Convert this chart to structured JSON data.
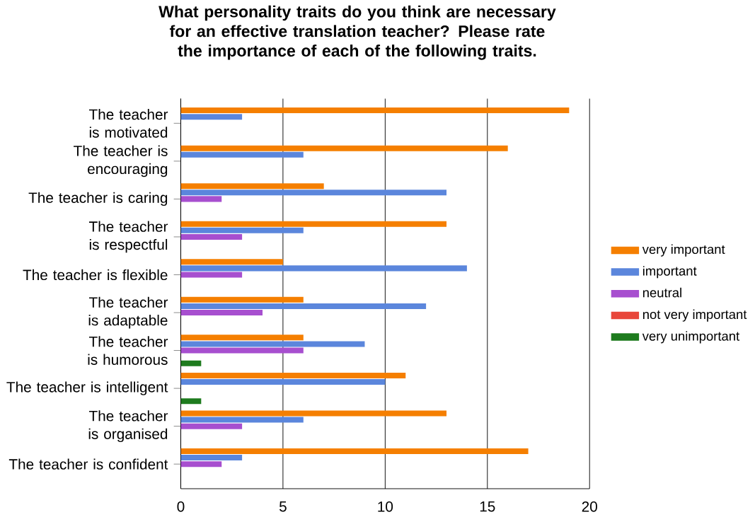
{
  "chart_data": {
    "type": "bar",
    "orientation": "horizontal",
    "title": "What personality traits do you think are necessary for an effective translation teacher? Please rate the importance of each of the following traits.",
    "categories": [
      "The teacher is motivated",
      "The teacher is encouraging",
      "The teacher is caring",
      "The teacher is respectful",
      "The teacher is flexible",
      "The teacher is adaptable",
      "The teacher is humorous",
      "The teacher is intelligent",
      "The teacher is organised",
      "The teacher is confident"
    ],
    "series": [
      {
        "name": "very important",
        "color": "#f57f00",
        "values": [
          19,
          16,
          7,
          13,
          5,
          6,
          6,
          11,
          13,
          17
        ]
      },
      {
        "name": "important",
        "color": "#5b86dc",
        "values": [
          3,
          6,
          13,
          6,
          14,
          12,
          9,
          10,
          6,
          3
        ]
      },
      {
        "name": "neutral",
        "color": "#a74fcf",
        "values": [
          0,
          0,
          2,
          3,
          3,
          4,
          6,
          0,
          3,
          2
        ]
      },
      {
        "name": "not very important",
        "color": "#e8463a",
        "values": [
          0,
          0,
          0,
          0,
          0,
          0,
          0,
          0,
          0,
          0
        ]
      },
      {
        "name": "very unimportant",
        "color": "#1e7b1e",
        "values": [
          0,
          0,
          0,
          0,
          0,
          0,
          1,
          1,
          0,
          0
        ]
      }
    ],
    "xlim": [
      0,
      20
    ],
    "xticks": [
      0,
      5,
      10,
      15,
      20
    ],
    "grid": "x",
    "legend": "right"
  }
}
